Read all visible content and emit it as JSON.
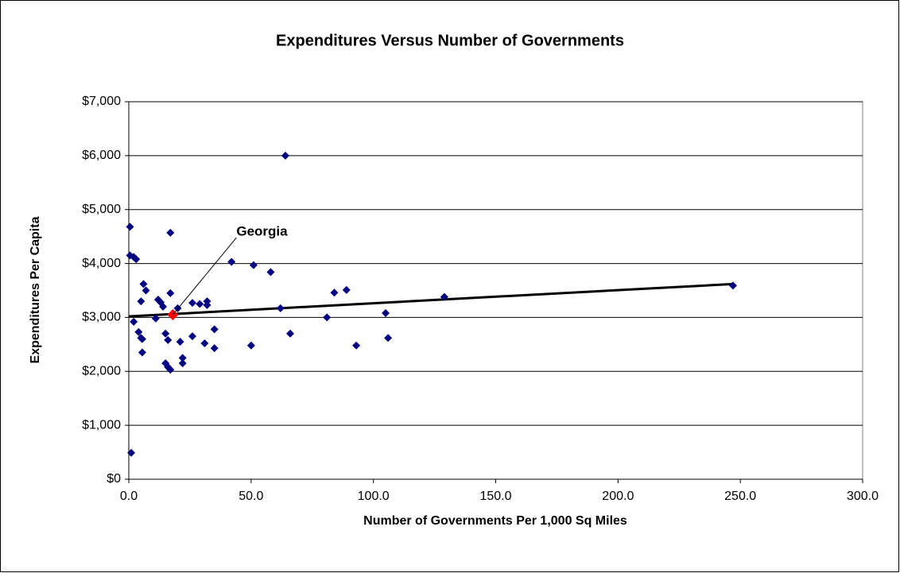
{
  "chart_data": {
    "type": "scatter",
    "title": "Expenditures Versus Number of Governments",
    "x_label": "Number of Governments Per 1,000 Sq Miles",
    "y_label": "Expenditures Per Capita",
    "xlim": [
      0,
      300
    ],
    "ylim": [
      0,
      7000
    ],
    "xticks": [
      {
        "value": 0,
        "label": "0.0"
      },
      {
        "value": 50,
        "label": "50.0"
      },
      {
        "value": 100,
        "label": "100.0"
      },
      {
        "value": 150,
        "label": "150.0"
      },
      {
        "value": 200,
        "label": "200.0"
      },
      {
        "value": 250,
        "label": "250.0"
      },
      {
        "value": 300,
        "label": "300.0"
      }
    ],
    "yticks": [
      {
        "value": 0,
        "label": "$0"
      },
      {
        "value": 1000,
        "label": "$1,000"
      },
      {
        "value": 2000,
        "label": "$2,000"
      },
      {
        "value": 3000,
        "label": "$3,000"
      },
      {
        "value": 4000,
        "label": "$4,000"
      },
      {
        "value": 5000,
        "label": "$5,000"
      },
      {
        "value": 6000,
        "label": "$6,000"
      },
      {
        "value": 7000,
        "label": "$7,000"
      }
    ],
    "grid": true,
    "series": [
      {
        "color": "#000080",
        "x": [
          0.5,
          0.5,
          2,
          3,
          1,
          2,
          4,
          5,
          5,
          6,
          7,
          5.5,
          5.5,
          11,
          12,
          13,
          14,
          15,
          16,
          15,
          16,
          17,
          17,
          17,
          20,
          21,
          22,
          22,
          26,
          26,
          29,
          31,
          32,
          32,
          35,
          35,
          42,
          50,
          51,
          58,
          62,
          64,
          66,
          81,
          84,
          89,
          93,
          105,
          106,
          129,
          247
        ],
        "values": [
          4680,
          4150,
          4120,
          4080,
          490,
          2920,
          2730,
          2620,
          3300,
          3620,
          3500,
          2600,
          2350,
          2980,
          3330,
          3280,
          3200,
          2700,
          2580,
          2150,
          2080,
          2030,
          4570,
          3450,
          3170,
          2550,
          2250,
          2150,
          3270,
          2650,
          3250,
          2520,
          3230,
          3300,
          2430,
          2780,
          4030,
          2480,
          3970,
          3840,
          3170,
          6000,
          2700,
          3000,
          3460,
          3510,
          2480,
          3080,
          2620,
          3380,
          3590
        ]
      },
      {
        "color": "#ff0000",
        "x": [
          18
        ],
        "values": [
          3050
        ]
      }
    ],
    "trendline": {
      "color": "#000000",
      "x": [
        0,
        247
      ],
      "values": [
        3020,
        3620
      ]
    },
    "annotation": {
      "text": "Georgia",
      "color": "#ff0000",
      "x": 18,
      "y": 3050
    }
  }
}
